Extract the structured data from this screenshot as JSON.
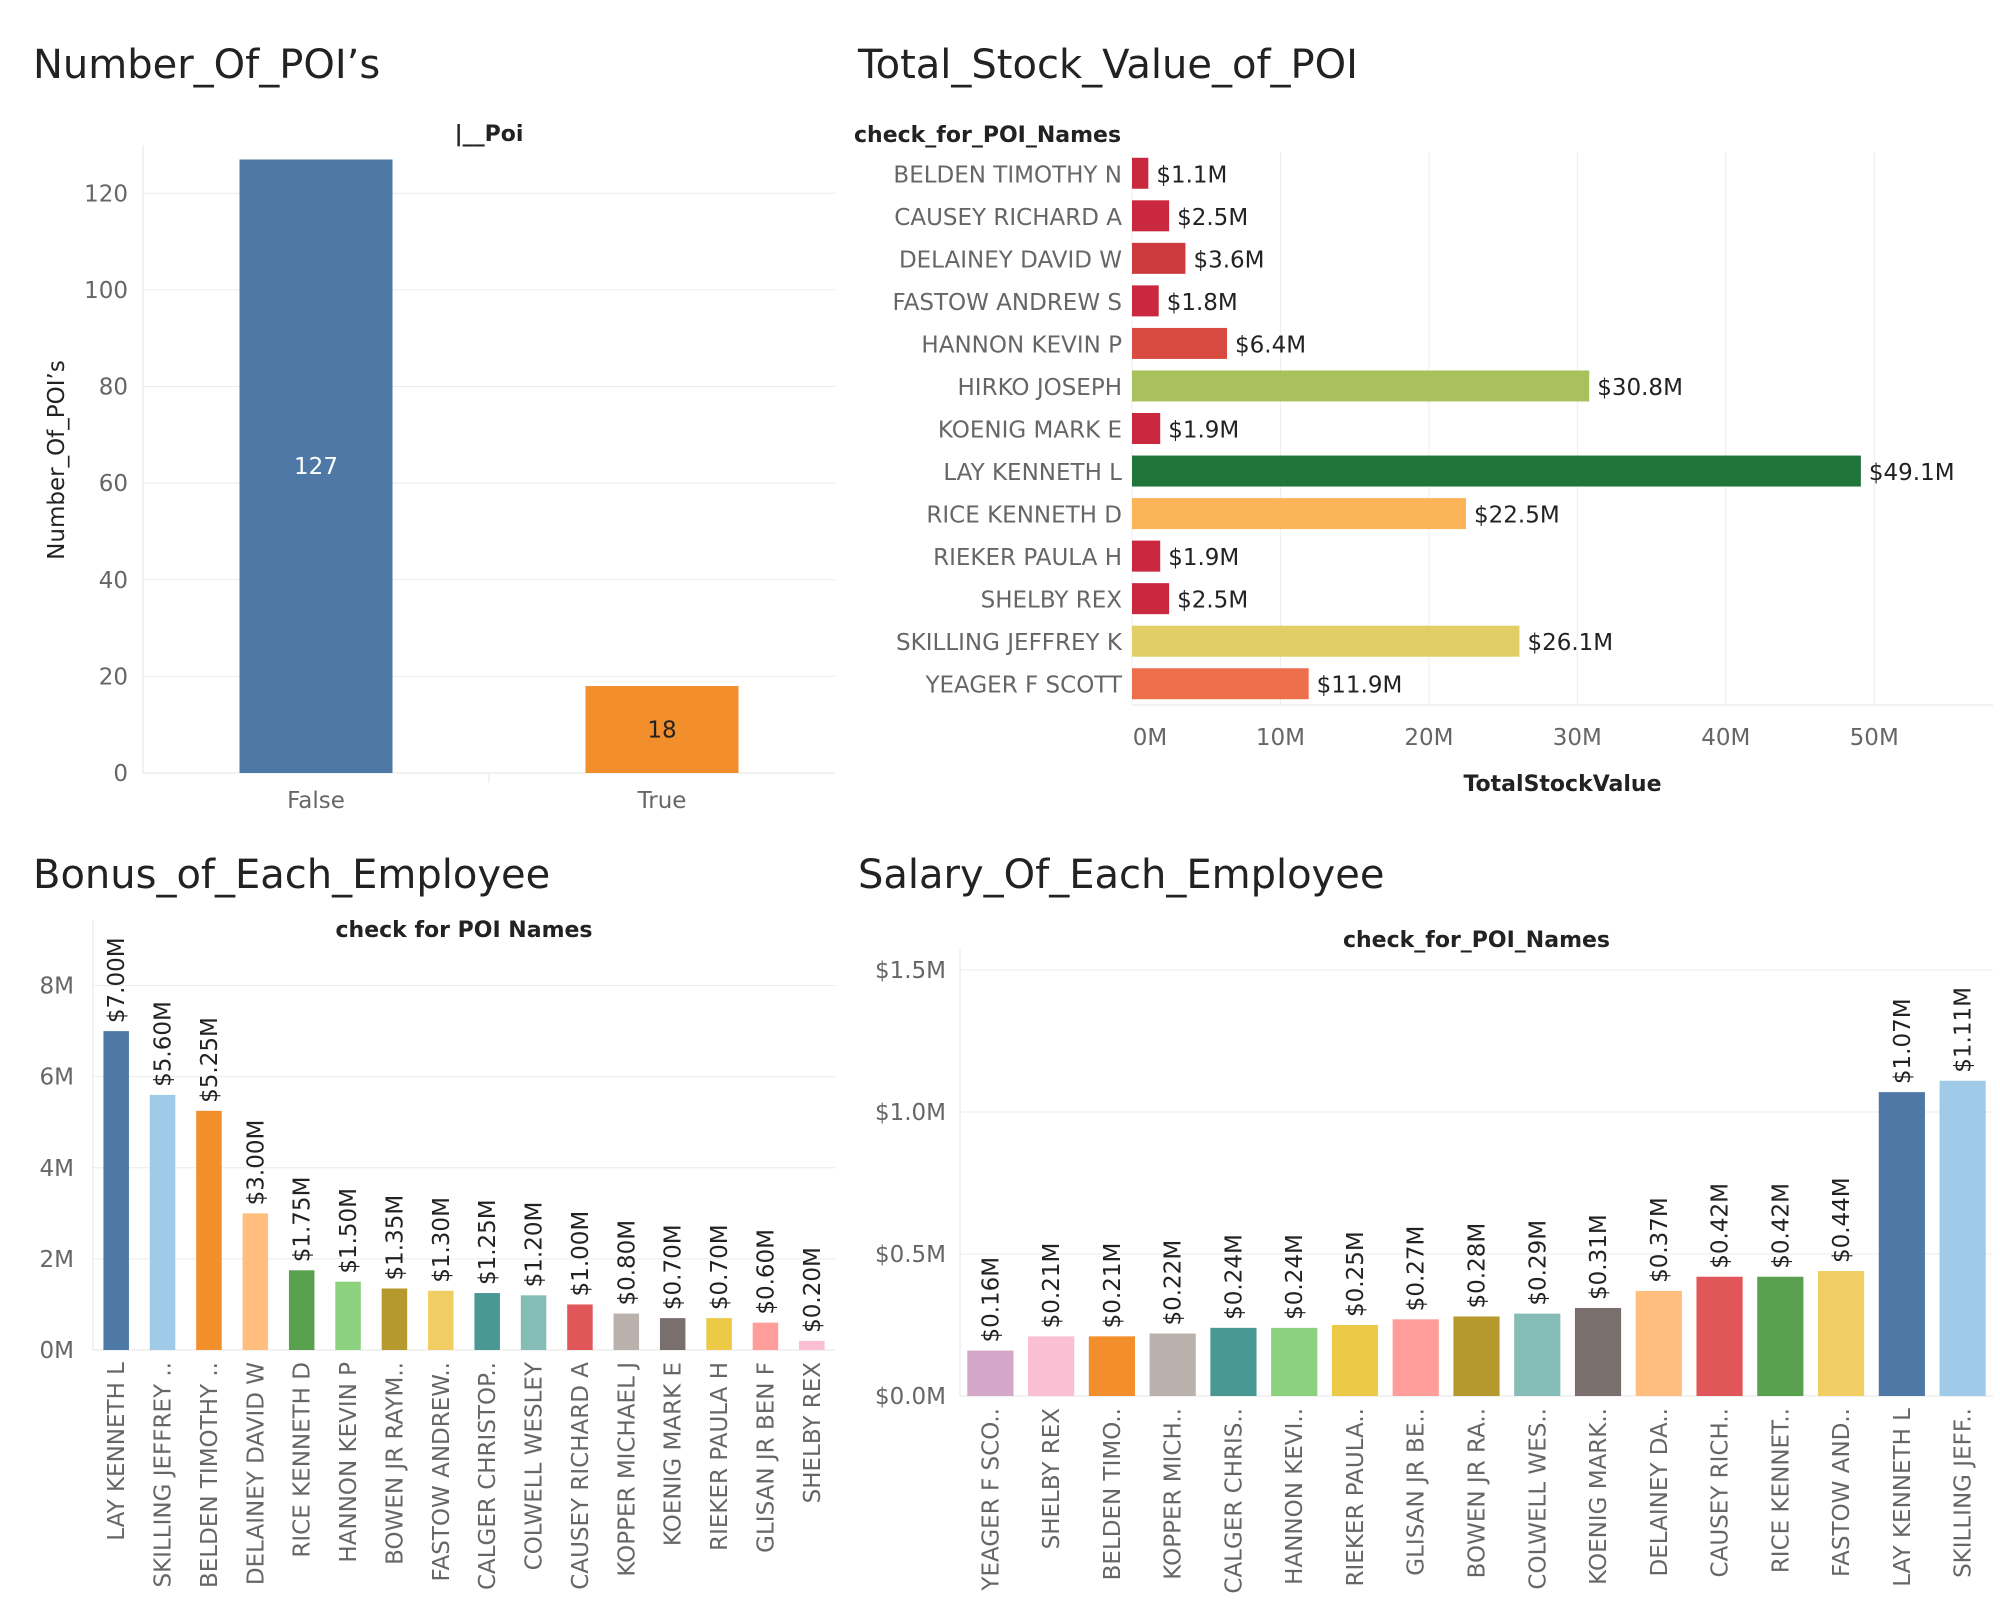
{
  "panels": {
    "poi_count": {
      "title": "Number_Of_POI’s"
    },
    "stock": {
      "title": "Total_Stock_Value_of_POI"
    },
    "bonus": {
      "title": "Bonus_of_Each_Employee"
    },
    "salary": {
      "title": "Salary_Of_Each_Employee"
    }
  },
  "chart_data": [
    {
      "id": "poi_count",
      "type": "bar",
      "column_header": "|__Poi",
      "ylabel": "Number_Of_POI’s",
      "categories": [
        "False",
        "True"
      ],
      "values": [
        127,
        18
      ],
      "data_labels": [
        "127",
        "18"
      ],
      "colors": [
        "#4e79a7",
        "#f28e2b"
      ],
      "ylim": [
        0,
        130
      ],
      "yticks": [
        0,
        20,
        40,
        60,
        80,
        100,
        120
      ],
      "ytick_labels": [
        "0",
        "20",
        "40",
        "60",
        "80",
        "100",
        "120"
      ],
      "grid": true
    },
    {
      "id": "stock",
      "type": "bar",
      "orientation": "horizontal",
      "row_header": "check_for_POI_Names",
      "xlabel": "TotalStockValue",
      "categories": [
        "BELDEN TIMOTHY N",
        "CAUSEY RICHARD A",
        "DELAINEY DAVID W",
        "FASTOW ANDREW S",
        "HANNON KEVIN P",
        "HIRKO JOSEPH",
        "KOENIG MARK E",
        "LAY KENNETH L",
        "RICE KENNETH D",
        "RIEKER PAULA H",
        "SHELBY REX",
        "SKILLING JEFFREY K",
        "YEAGER F SCOTT"
      ],
      "values": [
        1.1,
        2.5,
        3.6,
        1.8,
        6.4,
        30.8,
        1.9,
        49.1,
        22.5,
        1.9,
        2.5,
        26.1,
        11.9
      ],
      "unit": "millions USD",
      "data_labels": [
        "$1.1M",
        "$2.5M",
        "$3.6M",
        "$1.8M",
        "$6.4M",
        "$30.8M",
        "$1.9M",
        "$49.1M",
        "$22.5M",
        "$1.9M",
        "$2.5M",
        "$26.1M",
        "$11.9M"
      ],
      "colors": [
        "#c9283e",
        "#c9283e",
        "#cc3a3d",
        "#c9283e",
        "#d94b40",
        "#a9c15c",
        "#c9283e",
        "#20753a",
        "#fbb457",
        "#c9283e",
        "#c9283e",
        "#e1cf65",
        "#ec6e4a"
      ],
      "xlim": [
        0,
        58
      ],
      "xticks": [
        0,
        10,
        20,
        30,
        40,
        50
      ],
      "xtick_labels": [
        "0M",
        "10M",
        "20M",
        "30M",
        "40M",
        "50M"
      ],
      "grid": true
    },
    {
      "id": "bonus",
      "type": "bar",
      "column_header": "check  for  POI  Names",
      "categories": [
        "LAY KENNETH L",
        "SKILLING JEFFREY ..",
        "BELDEN TIMOTHY ..",
        "DELAINEY DAVID W",
        "RICE KENNETH D",
        "HANNON KEVIN P",
        "BOWEN JR RAYM..",
        "FASTOW ANDREW..",
        "CALGER CHRISTOP..",
        "COLWELL WESLEY",
        "CAUSEY RICHARD A",
        "KOPPER MICHAEL J",
        "KOENIG MARK E",
        "RIEKER PAULA H",
        "GLISAN JR BEN F",
        "SHELBY REX"
      ],
      "values": [
        7.0,
        5.6,
        5.25,
        3.0,
        1.75,
        1.5,
        1.35,
        1.3,
        1.25,
        1.2,
        1.0,
        0.8,
        0.7,
        0.7,
        0.6,
        0.2
      ],
      "unit": "millions USD",
      "data_labels": [
        "$7.00M",
        "$5.60M",
        "$5.25M",
        "$3.00M",
        "$1.75M",
        "$1.50M",
        "$1.35M",
        "$1.30M",
        "$1.25M",
        "$1.20M",
        "$1.00M",
        "$0.80M",
        "$0.70M",
        "$0.70M",
        "$0.60M",
        "$0.20M"
      ],
      "colors": [
        "#4e79a7",
        "#a0cbe8",
        "#f28e2b",
        "#ffbe7d",
        "#59a14f",
        "#8cd17d",
        "#b6992d",
        "#f1ce63",
        "#499894",
        "#86bcb6",
        "#e15759",
        "#bab0ac",
        "#79706e",
        "#edc948",
        "#ff9d9a",
        "#fabfd2"
      ],
      "ylim": [
        0,
        9
      ],
      "yticks": [
        0,
        2,
        4,
        6,
        8
      ],
      "ytick_labels": [
        "0M",
        "2M",
        "4M",
        "6M",
        "8M"
      ],
      "grid": true
    },
    {
      "id": "salary",
      "type": "bar",
      "column_header": "check_for_POI_Names",
      "categories": [
        "YEAGER F SCO..",
        "SHELBY REX",
        "BELDEN TIMO..",
        "KOPPER MICH..",
        "CALGER CHRIS..",
        "HANNON KEVI..",
        "RIEKER PAULA..",
        "GLISAN JR BE..",
        "BOWEN JR RA..",
        "COLWELL WES..",
        "KOENIG MARK..",
        "DELAINEY DA..",
        "CAUSEY RICH..",
        "RICE KENNET..",
        "FASTOW AND..",
        "LAY KENNETH L",
        "SKILLING JEFF.."
      ],
      "values": [
        0.16,
        0.21,
        0.21,
        0.22,
        0.24,
        0.24,
        0.25,
        0.27,
        0.28,
        0.29,
        0.31,
        0.37,
        0.42,
        0.42,
        0.44,
        1.07,
        1.11
      ],
      "unit": "millions USD",
      "data_labels": [
        "$0.16M",
        "$0.21M",
        "$0.21M",
        "$0.22M",
        "$0.24M",
        "$0.24M",
        "$0.25M",
        "$0.27M",
        "$0.28M",
        "$0.29M",
        "$0.31M",
        "$0.37M",
        "$0.42M",
        "$0.42M",
        "$0.44M",
        "$1.07M",
        "$1.11M"
      ],
      "colors": [
        "#d4a6c8",
        "#fabfd2",
        "#f28e2b",
        "#bab0ac",
        "#499894",
        "#8cd17d",
        "#edc948",
        "#ff9d9a",
        "#b6992d",
        "#86bcb6",
        "#79706e",
        "#ffbe7d",
        "#e15759",
        "#59a14f",
        "#f1ce63",
        "#4e79a7",
        "#a0cbe8"
      ],
      "ylim": [
        0,
        1.5
      ],
      "yticks": [
        0,
        0.5,
        1.0,
        1.5
      ],
      "ytick_labels": [
        "$0.0M",
        "$0.5M",
        "$1.0M",
        "$1.5M"
      ],
      "grid": true
    }
  ]
}
